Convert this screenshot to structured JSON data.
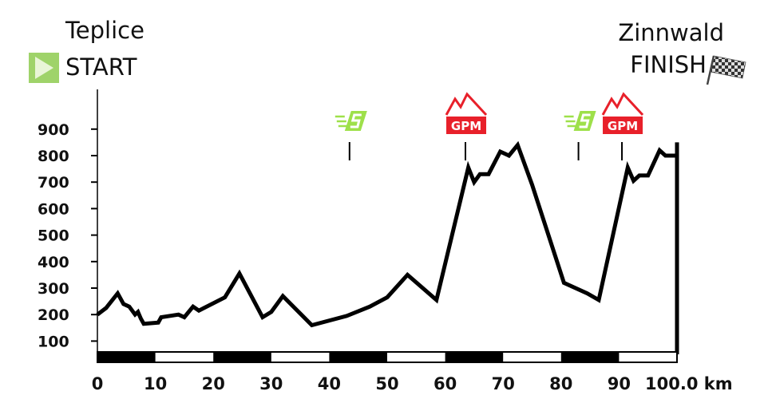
{
  "start": {
    "city": "Teplice",
    "label": "START"
  },
  "finish": {
    "city": "Zinnwald",
    "label": "FINISH"
  },
  "icons": {
    "start": "play-icon",
    "finish": "checkered-flag-icon",
    "sprint": "sprint-icon",
    "climb": "mountain-icon"
  },
  "colors": {
    "profile": "#000000",
    "sprint": "#9ee04a",
    "climb": "#e8202a",
    "start_icon": "#9fd36a"
  },
  "chart_data": {
    "type": "line",
    "x_unit": "km",
    "xlim": [
      0,
      100
    ],
    "ylim": [
      50,
      1050
    ],
    "x_ticks": [
      0,
      10,
      20,
      30,
      40,
      50,
      60,
      70,
      80,
      90,
      100
    ],
    "x_tick_labels": [
      "0",
      "10",
      "20",
      "30",
      "40",
      "50",
      "60",
      "70",
      "80",
      "90",
      "100.0 km"
    ],
    "y_ticks": [
      100,
      200,
      300,
      400,
      500,
      600,
      700,
      800,
      900
    ],
    "y_tick_labels": [
      "100",
      "200",
      "300",
      "400",
      "500",
      "600",
      "700",
      "800",
      "900"
    ],
    "grid": false,
    "series": [
      {
        "x": [
          0,
          1.5,
          3.5,
          4.5,
          5.5,
          6.5,
          7,
          7.5,
          8,
          10.5,
          11,
          14,
          15,
          16.5,
          17.5,
          22,
          24.5,
          28.5,
          30,
          32,
          37,
          43,
          47,
          50,
          53.5,
          58.5,
          64,
          65,
          66,
          67.5,
          69.5,
          71,
          72.5,
          75,
          80.5,
          84.5,
          86.5,
          91.5,
          92.5,
          93.5,
          95,
          97,
          98,
          100
        ],
        "y": [
          200,
          225,
          280,
          240,
          230,
          200,
          210,
          185,
          165,
          170,
          190,
          200,
          190,
          230,
          215,
          265,
          355,
          190,
          210,
          270,
          160,
          195,
          230,
          265,
          350,
          255,
          755,
          700,
          730,
          730,
          815,
          800,
          840,
          690,
          320,
          280,
          255,
          755,
          705,
          725,
          725,
          820,
          800,
          800
        ]
      }
    ],
    "markers": [
      {
        "type": "sprint",
        "km": 43.5
      },
      {
        "type": "climb",
        "km": 63.5,
        "label": "GPM"
      },
      {
        "type": "sprint",
        "km": 83
      },
      {
        "type": "climb",
        "km": 90.5,
        "label": "GPM"
      }
    ]
  }
}
